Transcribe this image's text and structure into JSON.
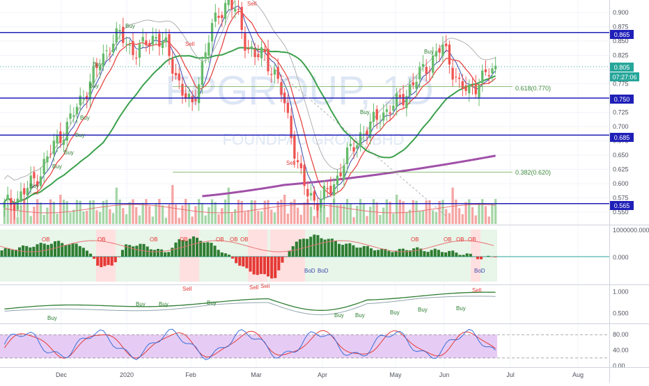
{
  "watermark": {
    "symbol": "FPGROUP, 1D",
    "name": "FOUNDPAC GROUP BHD"
  },
  "colors": {
    "up": "#66bb6a",
    "down": "#ef5350",
    "hline": "#1f1fb8",
    "sma50": "#3aa04a",
    "sma200": "#a050a8",
    "ema_fast": "#e53935",
    "ema_fast2": "#3949ab",
    "fib": "#6aa84f",
    "stoch_k": "#3b6fd8",
    "stoch_d": "#e53935",
    "stoch_bg": "#e6ccf5"
  },
  "axis": {
    "price_ticks": [
      "0.900",
      "0.875",
      "0.850",
      "0.825",
      "0.800",
      "0.775",
      "0.750",
      "0.725",
      "0.700",
      "0.675",
      "0.650",
      "0.625",
      "0.600",
      "0.575",
      "0.550"
    ],
    "month_labels": [
      "Dec",
      "2020",
      "Feb",
      "Mar",
      "Apr",
      "May",
      "Jun",
      "Jul",
      "Aug"
    ],
    "osc_ticks": [
      "1000000.000",
      "0.000"
    ],
    "ind2_ticks": [
      "1.000",
      "0.500"
    ],
    "stoch_ticks": [
      "80.00",
      "40.00",
      "0.00"
    ]
  },
  "price_badges": {
    "h865": "0.865",
    "last": "0.805",
    "time": "07:27:06",
    "h750": "0.750",
    "h685": "0.685",
    "h565": "0.565"
  },
  "fib_labels": {
    "f618": "0.618(0.770)",
    "f382": "0.382(0.620)"
  },
  "signal_labels": {
    "buy": "Buy",
    "sell": "Sell",
    "ob": "OB",
    "bod": "BoD"
  },
  "chart_data": [
    {
      "type": "candlestick",
      "title": "",
      "ylim": [
        0.54,
        0.91
      ],
      "x_range": [
        "Nov 2019",
        "Aug 2020"
      ],
      "horizontal_levels": [
        0.865,
        0.75,
        0.685,
        0.565
      ],
      "fib_levels": [
        {
          "ratio": 0.618,
          "price": 0.77
        },
        {
          "ratio": 0.382,
          "price": 0.62
        }
      ],
      "last_price": 0.805,
      "closes_approx": [
        0.56,
        0.57,
        0.58,
        0.6,
        0.62,
        0.65,
        0.68,
        0.7,
        0.73,
        0.76,
        0.79,
        0.82,
        0.85,
        0.86,
        0.84,
        0.83,
        0.85,
        0.86,
        0.84,
        0.8,
        0.76,
        0.73,
        0.8,
        0.86,
        0.9,
        0.92,
        0.9,
        0.85,
        0.82,
        0.83,
        0.8,
        0.76,
        0.7,
        0.62,
        0.58,
        0.57,
        0.58,
        0.6,
        0.64,
        0.66,
        0.69,
        0.7,
        0.72,
        0.73,
        0.74,
        0.76,
        0.78,
        0.8,
        0.82,
        0.84,
        0.81,
        0.77,
        0.76,
        0.78,
        0.79,
        0.8
      ]
    },
    {
      "type": "bar",
      "title": "",
      "ylim": [
        -1500000,
        1500000
      ],
      "note": "momentum oscillator, values approximate",
      "values_approx": [
        0.3,
        0.4,
        0.5,
        0.6,
        0.7,
        0.6,
        0.5,
        -0.4,
        -0.5,
        0.5,
        0.6,
        0.4,
        0.2,
        0.8,
        0.9,
        0.7,
        0.3,
        -0.2,
        -0.7,
        -0.9,
        -1.0,
        0.4,
        0.9,
        1.0,
        0.8,
        0.6,
        0.5,
        0.4,
        0.3,
        0.3,
        0.4,
        0.3,
        0.3,
        0.2,
        0.1,
        -0.1,
        0.05
      ]
    },
    {
      "type": "line",
      "title": "",
      "ylim": [
        0.3,
        1.1
      ]
    },
    {
      "type": "line",
      "title": "",
      "ylim": [
        0,
        100
      ],
      "band": [
        20,
        80
      ]
    }
  ]
}
